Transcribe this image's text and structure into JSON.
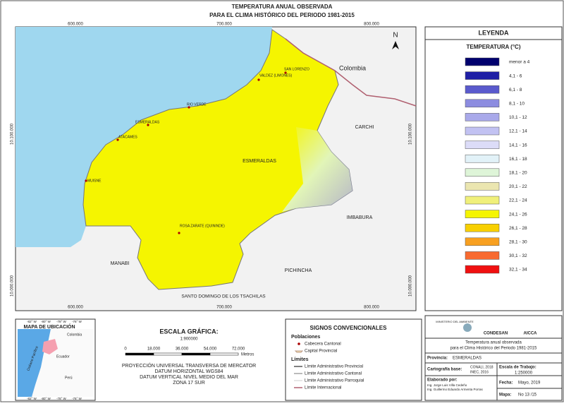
{
  "header": {
    "title": [
      "TEMPERATURA ANUAL OBSERVADA",
      "PARA EL CLIMA HISTÓRICO DEL PERIODO 1981-2015"
    ]
  },
  "map": {
    "north": "N",
    "grid_x": [
      "600.000",
      "700.000",
      "800.000"
    ],
    "grid_y": [
      "10.100.000",
      "10.000.000"
    ],
    "regions": [
      "Colombia",
      "CARCHI",
      "IMBABURA",
      "PICHINCHA",
      "MANABI",
      "SANTO DOMINGO DE LOS TSACHILAS",
      "ESMERALDAS"
    ],
    "places": [
      "SAN LORENZO",
      "VALDEZ (LIMONES)",
      "RIO VERDE",
      "ESMERALDAS",
      "ATACAMES",
      "MUISNE",
      "ROSA ZARATE (QUININDE)"
    ]
  },
  "legend": {
    "title": "LEYENDA",
    "subtitle": "TEMPERATURA (°C)",
    "items": [
      {
        "label": "menor a 4",
        "color": "#00006e"
      },
      {
        "label": "4,1 - 6",
        "color": "#1f1fa5"
      },
      {
        "label": "6,1 - 8",
        "color": "#5a5acd"
      },
      {
        "label": "8,1 - 10",
        "color": "#8c8ce0"
      },
      {
        "label": "10,1 - 12",
        "color": "#a9a9ea"
      },
      {
        "label": "12,1 - 14",
        "color": "#c2c2f2"
      },
      {
        "label": "14,1 - 16",
        "color": "#dcdcf8"
      },
      {
        "label": "16,1 - 18",
        "color": "#e2f2f8"
      },
      {
        "label": "18,1 - 20",
        "color": "#def5d8"
      },
      {
        "label": "20,1 - 22",
        "color": "#ebe6b0"
      },
      {
        "label": "22,1 - 24",
        "color": "#f0f07a"
      },
      {
        "label": "24,1 - 26",
        "color": "#f5f500"
      },
      {
        "label": "26,1 - 28",
        "color": "#f8d000"
      },
      {
        "label": "28,1 - 30",
        "color": "#f8a020"
      },
      {
        "label": "30,1 - 32",
        "color": "#f86a30"
      },
      {
        "label": "32,1 - 34",
        "color": "#f01010"
      }
    ]
  },
  "location_map": {
    "title": "MAPA DE UBICACIÓN",
    "labels": [
      "Colombia",
      "Ecuador",
      "Perú",
      "Océano Pacífico"
    ],
    "ticks": [
      "-82° W",
      "-80° W",
      "-78° W",
      "-76° W"
    ]
  },
  "scale": {
    "title": "ESCALA GRÁFICA:",
    "ratio": "1:900000",
    "ticks": [
      "0",
      "18.000",
      "36.000",
      "54.000",
      "72.000"
    ],
    "unit": "Metros",
    "projection": [
      "PROYECCIÓN UNIVERSAL TRANSVERSA DE MERCATOR",
      "DATUM HORIZONTAL WGS84",
      "DATUM VERTICAL NIVEL MEDIO DEL MAR",
      "ZONA 17 SUR"
    ]
  },
  "signs": {
    "title": "SIGNOS CONVENCIONALES",
    "populations": "Poblaciones",
    "pop_items": [
      "Cabecera Cantonal",
      "Capital Provincial"
    ],
    "limits": "Límites",
    "limit_items": [
      "Límite Administrativo Provincial",
      "Límite Administrativo Cantonal",
      "Límite Administrativo Parroquial",
      "Límite Internacional"
    ]
  },
  "info": {
    "logos": [
      "MINISTERIO DEL AMBIENTE",
      "CONDESAN",
      "AICCA"
    ],
    "description": [
      "Temperatura anual observada",
      "para el Clima Histórico del Periodo 1981-2015"
    ],
    "province_label": "Provincia:",
    "province": "ESMERALDAS",
    "base_label": "Cartografía base:",
    "base": [
      "CONALI, 2018",
      "INEC, 2016"
    ],
    "scale_label": "Escala de Trabajo:",
    "scale": "1:250000",
    "author_label": "Elaborado por:",
    "authors": [
      "Ing. Jorge Luis Villa Cedeño",
      "Ing. Guillermo Eduardo Armenta Porras"
    ],
    "date_label": "Fecha:",
    "date": "Mayo, 2019",
    "map_label": "Mapa:",
    "map": "No 13 /15"
  }
}
